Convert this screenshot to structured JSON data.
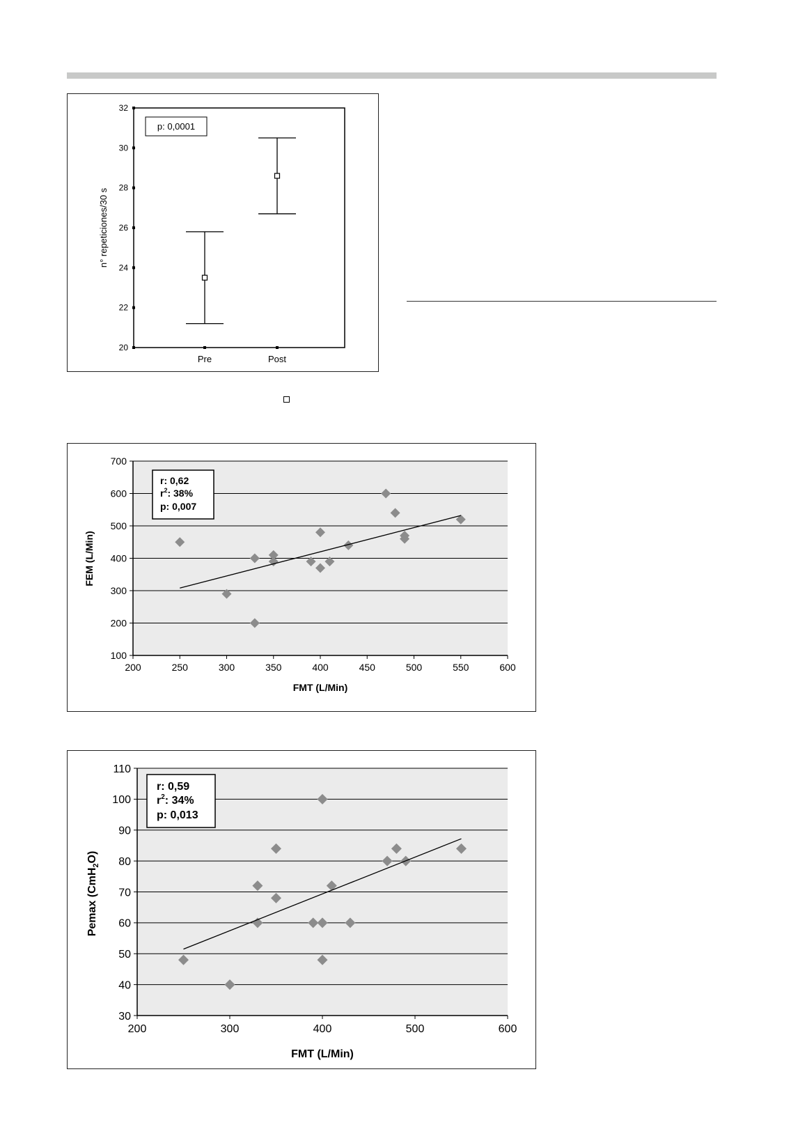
{
  "chart_data": [
    {
      "type": "errorbar",
      "categories": [
        "Pre",
        "Post"
      ],
      "ylabel": "n° repeticiones/30 s",
      "xlabel": "",
      "ylim": [
        20,
        32
      ],
      "yticks": [
        "20",
        "22",
        "24",
        "26",
        "28",
        "30",
        "32"
      ],
      "annotation": "p: 0,0001",
      "series": [
        {
          "mean": [
            23.5,
            28.6
          ],
          "lower": [
            21.2,
            26.7
          ],
          "upper": [
            25.8,
            30.5
          ]
        }
      ],
      "grid": false
    },
    {
      "type": "scatter",
      "xlabel": "FMT (L/Min)",
      "ylabel": "FEM (L/Min)",
      "xlim": [
        200,
        600
      ],
      "ylim": [
        100,
        700
      ],
      "xticks": [
        "200",
        "250",
        "300",
        "350",
        "400",
        "450",
        "500",
        "550",
        "600"
      ],
      "yticks": [
        "100",
        "200",
        "300",
        "400",
        "500",
        "600",
        "700"
      ],
      "annotation": {
        "r": "r: 0,62",
        "r2_prefix": "r",
        "r2_sup": "2",
        "r2_value": ": 38%",
        "p": "p: 0,007"
      },
      "points": {
        "x": [
          250,
          300,
          330,
          330,
          350,
          350,
          390,
          400,
          400,
          410,
          430,
          470,
          480,
          490,
          490,
          550
        ],
        "y": [
          450,
          290,
          200,
          400,
          410,
          390,
          390,
          480,
          370,
          390,
          440,
          600,
          540,
          470,
          460,
          520
        ]
      },
      "trendline": {
        "x": [
          250,
          550
        ],
        "y": [
          308,
          532
        ]
      },
      "marker_color": "#8c8c8c",
      "plot_bg": "#ebebeb",
      "grid": true
    },
    {
      "type": "scatter",
      "xlabel": "FMT (L/Min)",
      "ylabel_main": "Pemax (CmH",
      "ylabel_sub": "2",
      "ylabel_end": "O)",
      "xlim": [
        200,
        600
      ],
      "ylim": [
        30,
        110
      ],
      "xticks": [
        "200",
        "300",
        "400",
        "500",
        "600"
      ],
      "yticks": [
        "30",
        "40",
        "50",
        "60",
        "70",
        "80",
        "90",
        "100",
        "110"
      ],
      "annotation": {
        "r": "r: 0,59",
        "r2_prefix": "r",
        "r2_sup": "2",
        "r2_value": ": 34%",
        "p": "p: 0,013"
      },
      "points": {
        "x": [
          250,
          300,
          330,
          330,
          350,
          350,
          390,
          400,
          400,
          400,
          410,
          430,
          470,
          480,
          490,
          550
        ],
        "y": [
          48,
          40,
          72,
          60,
          84,
          68,
          60,
          100,
          60,
          48,
          72,
          60,
          80,
          84,
          80,
          84
        ]
      },
      "trendline": {
        "x": [
          250,
          550
        ],
        "y": [
          51.5,
          87.2
        ]
      },
      "marker_color": "#8c8c8c",
      "plot_bg": "#ebebeb",
      "grid": true
    }
  ]
}
